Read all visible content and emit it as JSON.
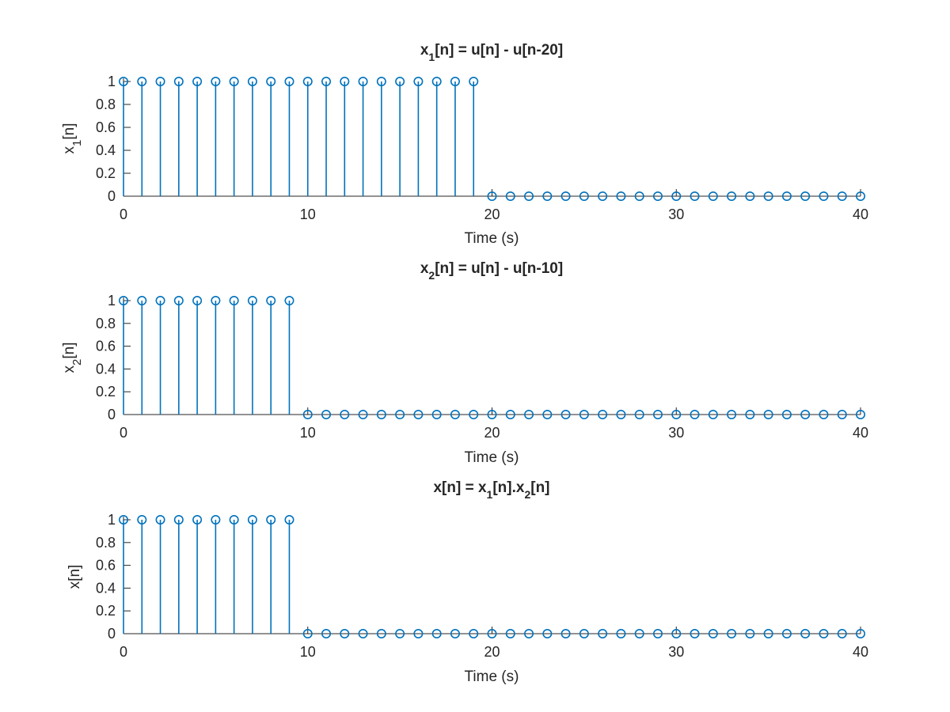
{
  "chart_data": [
    {
      "type": "stem",
      "title": {
        "base": "x",
        "sub": "1",
        "rest": "[n] = u[n] - u[n-20]"
      },
      "xlabel": "Time (s)",
      "ylabel": {
        "base": "x",
        "sub": "1",
        "rest": "[n]"
      },
      "xlim": [
        0,
        40
      ],
      "ylim": [
        0,
        1
      ],
      "xticks": [
        "0",
        "10",
        "20",
        "30",
        "40"
      ],
      "yticks": [
        "0",
        "0.2",
        "0.4",
        "0.6",
        "0.8",
        "1"
      ],
      "x": [
        0,
        1,
        2,
        3,
        4,
        5,
        6,
        7,
        8,
        9,
        10,
        11,
        12,
        13,
        14,
        15,
        16,
        17,
        18,
        19,
        20,
        21,
        22,
        23,
        24,
        25,
        26,
        27,
        28,
        29,
        30,
        31,
        32,
        33,
        34,
        35,
        36,
        37,
        38,
        39,
        40
      ],
      "values": [
        1,
        1,
        1,
        1,
        1,
        1,
        1,
        1,
        1,
        1,
        1,
        1,
        1,
        1,
        1,
        1,
        1,
        1,
        1,
        1,
        0,
        0,
        0,
        0,
        0,
        0,
        0,
        0,
        0,
        0,
        0,
        0,
        0,
        0,
        0,
        0,
        0,
        0,
        0,
        0,
        0
      ],
      "color": "#0072BD"
    },
    {
      "type": "stem",
      "title": {
        "base": "x",
        "sub": "2",
        "rest": "[n] = u[n] - u[n-10]"
      },
      "xlabel": "Time (s)",
      "ylabel": {
        "base": "x",
        "sub": "2",
        "rest": "[n]"
      },
      "xlim": [
        0,
        40
      ],
      "ylim": [
        0,
        1
      ],
      "xticks": [
        "0",
        "10",
        "20",
        "30",
        "40"
      ],
      "yticks": [
        "0",
        "0.2",
        "0.4",
        "0.6",
        "0.8",
        "1"
      ],
      "x": [
        0,
        1,
        2,
        3,
        4,
        5,
        6,
        7,
        8,
        9,
        10,
        11,
        12,
        13,
        14,
        15,
        16,
        17,
        18,
        19,
        20,
        21,
        22,
        23,
        24,
        25,
        26,
        27,
        28,
        29,
        30,
        31,
        32,
        33,
        34,
        35,
        36,
        37,
        38,
        39,
        40
      ],
      "values": [
        1,
        1,
        1,
        1,
        1,
        1,
        1,
        1,
        1,
        1,
        0,
        0,
        0,
        0,
        0,
        0,
        0,
        0,
        0,
        0,
        0,
        0,
        0,
        0,
        0,
        0,
        0,
        0,
        0,
        0,
        0,
        0,
        0,
        0,
        0,
        0,
        0,
        0,
        0,
        0,
        0
      ],
      "color": "#0072BD"
    },
    {
      "type": "stem",
      "title": {
        "pre": "x[n] = x",
        "sub1": "1",
        "mid": "[n].x",
        "sub2": "2",
        "post": "[n]"
      },
      "xlabel": "Time (s)",
      "ylabel": {
        "base": "x[n]"
      },
      "xlim": [
        0,
        40
      ],
      "ylim": [
        0,
        1
      ],
      "xticks": [
        "0",
        "10",
        "20",
        "30",
        "40"
      ],
      "yticks": [
        "0",
        "0.2",
        "0.4",
        "0.6",
        "0.8",
        "1"
      ],
      "x": [
        0,
        1,
        2,
        3,
        4,
        5,
        6,
        7,
        8,
        9,
        10,
        11,
        12,
        13,
        14,
        15,
        16,
        17,
        18,
        19,
        20,
        21,
        22,
        23,
        24,
        25,
        26,
        27,
        28,
        29,
        30,
        31,
        32,
        33,
        34,
        35,
        36,
        37,
        38,
        39,
        40
      ],
      "values": [
        1,
        1,
        1,
        1,
        1,
        1,
        1,
        1,
        1,
        1,
        0,
        0,
        0,
        0,
        0,
        0,
        0,
        0,
        0,
        0,
        0,
        0,
        0,
        0,
        0,
        0,
        0,
        0,
        0,
        0,
        0,
        0,
        0,
        0,
        0,
        0,
        0,
        0,
        0,
        0,
        0
      ],
      "color": "#0072BD"
    }
  ]
}
